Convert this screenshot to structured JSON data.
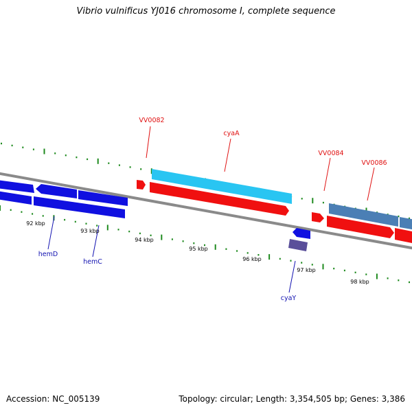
{
  "title": "Vibrio vulnificus YJ016 chromosome I, complete sequence",
  "footer": {
    "accession": "Accession: NC_005139",
    "summary": "Topology: circular; Length: 3,354,505 bp; Genes: 3,386"
  },
  "colors": {
    "backbone": "#8a8a8a",
    "tick": "#1e8a1e",
    "forward_gene": "#29c5f2",
    "forward_gene_alt": "#4b7fb5",
    "reverse_gene": "#f01010",
    "blue_gene": "#1010e0",
    "purple_gene": "#5a4f9a",
    "label_red": "#e01010",
    "label_blue": "#1010b0"
  },
  "tick_labels": [
    {
      "id": "kbp92",
      "text": "92 kbp"
    },
    {
      "id": "kbp93",
      "text": "93 kbp"
    },
    {
      "id": "kbp94",
      "text": "94 kbp"
    },
    {
      "id": "kbp95",
      "text": "95 kbp"
    },
    {
      "id": "kbp96",
      "text": "96 kbp"
    },
    {
      "id": "kbp97",
      "text": "97 kbp"
    },
    {
      "id": "kbp98",
      "text": "98 kbp"
    }
  ],
  "gene_labels": {
    "vv0082": "VV0082",
    "cyaA": "cyaA",
    "vv0084": "VV0084",
    "vv0086": "VV0086",
    "hemD": "hemD",
    "hemC": "hemC",
    "cyaY": "cyaY"
  }
}
